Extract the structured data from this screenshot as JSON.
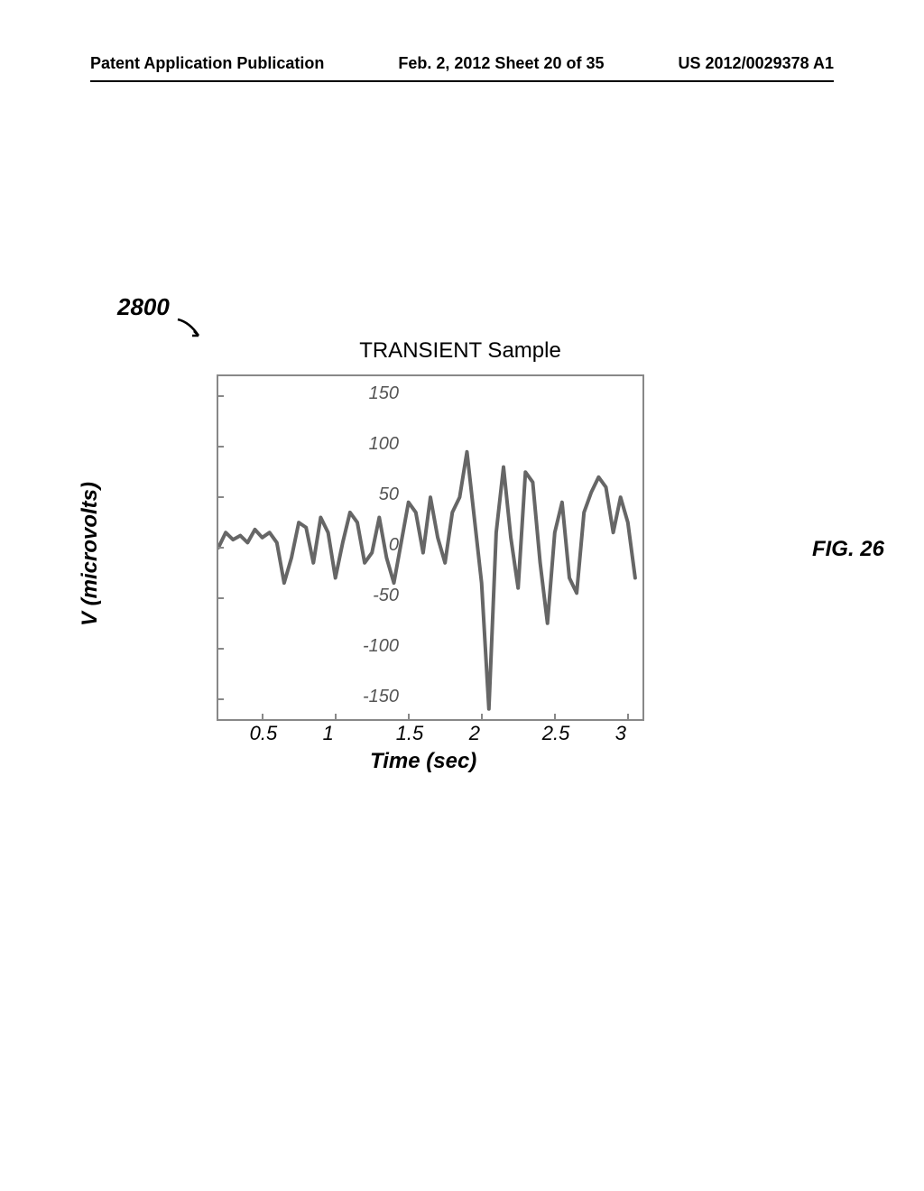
{
  "header": {
    "left": "Patent Application Publication",
    "center": "Feb. 2, 2012  Sheet 20 of 35",
    "right": "US 2012/0029378 A1"
  },
  "ref_number": "2800",
  "chart": {
    "type": "line",
    "title": "TRANSIENT Sample",
    "ylabel": "V (microvolts)",
    "xlabel": "Time (sec)",
    "ylim": [
      -170,
      170
    ],
    "xlim": [
      0.2,
      3.1
    ],
    "yticks": [
      -150,
      -100,
      -50,
      0,
      50,
      100,
      150
    ],
    "xticks": [
      0.5,
      1,
      1.5,
      2,
      2.5,
      3
    ],
    "line_color": "#666666",
    "line_width": 4,
    "border_color": "#888888",
    "background_color": "#ffffff",
    "data": {
      "x": [
        0.2,
        0.25,
        0.3,
        0.35,
        0.4,
        0.45,
        0.5,
        0.55,
        0.6,
        0.65,
        0.7,
        0.75,
        0.8,
        0.85,
        0.9,
        0.95,
        1.0,
        1.05,
        1.1,
        1.15,
        1.2,
        1.25,
        1.3,
        1.35,
        1.4,
        1.45,
        1.5,
        1.55,
        1.6,
        1.65,
        1.7,
        1.75,
        1.8,
        1.85,
        1.9,
        1.95,
        2.0,
        2.05,
        2.1,
        2.15,
        2.2,
        2.25,
        2.3,
        2.35,
        2.4,
        2.45,
        2.5,
        2.55,
        2.6,
        2.65,
        2.7,
        2.75,
        2.8,
        2.85,
        2.9,
        2.95,
        3.0,
        3.05
      ],
      "y": [
        0,
        15,
        8,
        12,
        5,
        18,
        10,
        15,
        5,
        -35,
        -10,
        25,
        20,
        -15,
        30,
        15,
        -30,
        5,
        35,
        25,
        -15,
        -5,
        30,
        -10,
        -35,
        5,
        45,
        35,
        -5,
        50,
        10,
        -15,
        35,
        50,
        95,
        30,
        -35,
        -160,
        15,
        80,
        10,
        -40,
        75,
        65,
        -15,
        -75,
        15,
        45,
        -30,
        -45,
        35,
        55,
        70,
        60,
        15,
        50,
        25,
        -30
      ]
    }
  },
  "figure_label": "FIG. 26"
}
